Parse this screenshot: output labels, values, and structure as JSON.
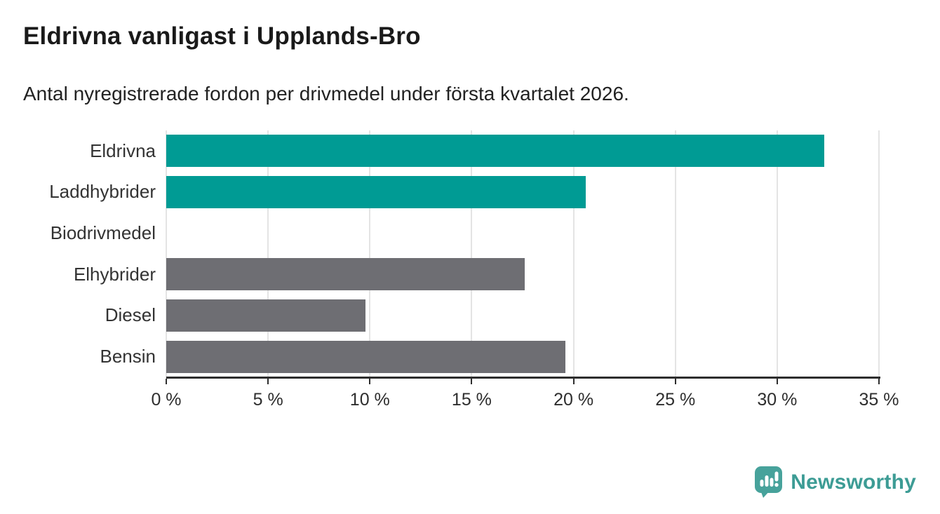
{
  "header": {
    "title": "Eldrivna vanligast i Upplands-Bro",
    "subtitle": "Antal nyregistrerade fordon per drivmedel under första kvartalet 2026."
  },
  "chart_data": {
    "type": "bar",
    "orientation": "horizontal",
    "title": "Eldrivna vanligast i Upplands-Bro",
    "subtitle": "Antal nyregistrerade fordon per drivmedel under första kvartalet 2026.",
    "categories": [
      "Eldrivna",
      "Laddhybrider",
      "Biodrivmedel",
      "Elhybrider",
      "Diesel",
      "Bensin"
    ],
    "values": [
      32.3,
      20.6,
      0,
      17.6,
      9.8,
      19.6
    ],
    "unit": "%",
    "bar_colors": [
      "#009b94",
      "#009b94",
      "#6e6e73",
      "#6e6e73",
      "#6e6e73",
      "#6e6e73"
    ],
    "highlight_color": "#009b94",
    "default_color": "#6e6e73",
    "xlim": [
      0,
      35
    ],
    "x_tick_step": 5,
    "x_tick_labels": [
      "0 %",
      "5 %",
      "10 %",
      "15 %",
      "20 %",
      "25 %",
      "30 %",
      "35 %"
    ],
    "grid": "vertical",
    "gridline_color": "#e4e4e4",
    "axis_color": "#2e2e2e",
    "legend": "none"
  },
  "branding": {
    "logo_text": "Newsworthy",
    "logo_text_color": "#3d9c95",
    "logo_icon_color": "#47a29b",
    "logo_icon": "speech-bubble-bar-chart-icon"
  }
}
